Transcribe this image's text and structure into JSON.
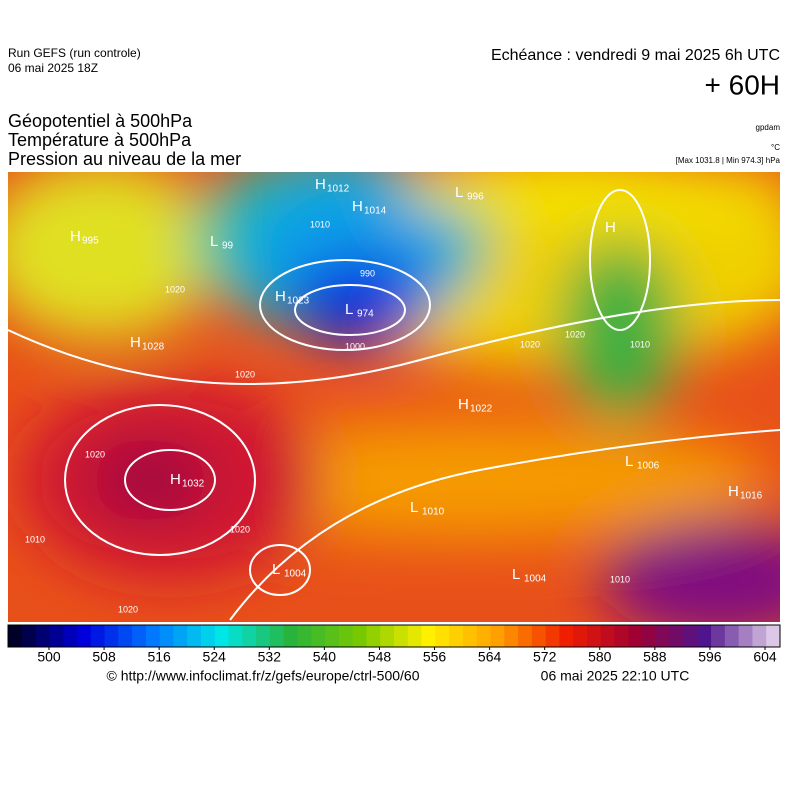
{
  "header": {
    "run": "Run GEFS (run controle)",
    "run_date": "06 mai 2025 18Z",
    "valid": "Echéance : vendredi 9 mai 2025 6h UTC",
    "lead": "+ 60H",
    "field1": "Géopotentiel à 500hPa",
    "field2": "Température à 500hPa",
    "field3": "Pression au niveau de la mer",
    "unit1": "gpdam",
    "unit2": "°C",
    "unit3": "[Max 1031.8 | Min 974.3] hPa"
  },
  "centers": [
    {
      "kind": "H",
      "value": "1012"
    },
    {
      "kind": "H",
      "value": "1014"
    },
    {
      "kind": "L",
      "value": "996"
    },
    {
      "kind": "H",
      "value": "995"
    },
    {
      "kind": "L",
      "value": "99"
    },
    {
      "kind": "H",
      "value": "1023"
    },
    {
      "kind": "L",
      "value": "974"
    },
    {
      "kind": "H",
      "value": "1028"
    },
    {
      "kind": "H",
      "value": "1022"
    },
    {
      "kind": "H",
      "value": "1032"
    },
    {
      "kind": "L",
      "value": "1010"
    },
    {
      "kind": "L",
      "value": "1004"
    },
    {
      "kind": "L",
      "value": "1004"
    },
    {
      "kind": "L",
      "value": "1006"
    },
    {
      "kind": "H",
      "value": "1016"
    },
    {
      "kind": "H",
      "value": ""
    }
  ],
  "isobars": [
    "1020",
    "1010",
    "1010",
    "990",
    "1000",
    "1020",
    "1020",
    "1020",
    "1020",
    "1010",
    "1020",
    "1020",
    "1010"
  ],
  "colorbar": {
    "ticks": [
      500,
      508,
      516,
      524,
      532,
      540,
      548,
      556,
      564,
      572,
      580,
      588,
      596,
      604
    ]
  },
  "footer": {
    "url": "© http://www.infoclimat.fr/z/gefs/europe/ctrl-500/60",
    "issued": "06 mai 2025 22:10 UTC"
  }
}
